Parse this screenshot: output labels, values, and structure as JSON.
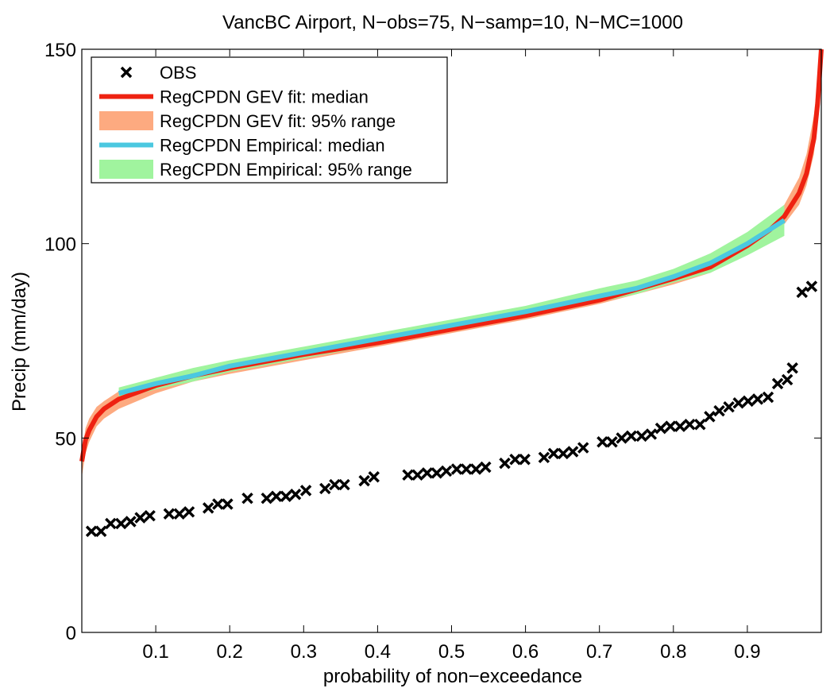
{
  "chart_data": {
    "type": "line",
    "title": "VancBC Airport, N−obs=75, N−samp=10, N−MC=1000",
    "xlabel": "probability of non−exceedance",
    "ylabel": "Precip (mm/day)",
    "xlim": [
      0.0,
      1.0
    ],
    "ylim": [
      0,
      150
    ],
    "xticks": [
      0.1,
      0.2,
      0.3,
      0.4,
      0.5,
      0.6,
      0.7,
      0.8,
      0.9
    ],
    "xtick_labels": [
      "0.1",
      "0.2",
      "0.3",
      "0.4",
      "0.5",
      "0.6",
      "0.7",
      "0.8",
      "0.9"
    ],
    "yticks": [
      0,
      50,
      100,
      150
    ],
    "ytick_labels": [
      "0",
      "50",
      "100",
      "150"
    ],
    "grid": false,
    "legend_position": "top-left",
    "legend": [
      {
        "label": "OBS",
        "kind": "marker",
        "color": "#000000"
      },
      {
        "label": "RegCPDN GEV fit: median",
        "kind": "line",
        "color": "#ee2211"
      },
      {
        "label": "RegCPDN GEV fit: 95% range",
        "kind": "band",
        "color": "#fdaa80"
      },
      {
        "label": "RegCPDN Empirical: median",
        "kind": "line",
        "color": "#4bc8e0"
      },
      {
        "label": "RegCPDN Empirical: 95% range",
        "kind": "band",
        "color": "#a0f49e"
      }
    ],
    "series": [
      {
        "name": "RegCPDN GEV fit: 95% range",
        "kind": "band",
        "color": "#fdaa80",
        "x": [
          0.0,
          0.005,
          0.01,
          0.02,
          0.03,
          0.05,
          0.1,
          0.15,
          0.2,
          0.3,
          0.4,
          0.5,
          0.6,
          0.7,
          0.8,
          0.85,
          0.9,
          0.93,
          0.95,
          0.97,
          0.98,
          0.99,
          0.995,
          1.0
        ],
        "lower": [
          40,
          46,
          49,
          53,
          55,
          57.5,
          61.5,
          64.5,
          66.5,
          70,
          73.5,
          77,
          80.5,
          84.5,
          89.5,
          92.5,
          97.5,
          101.5,
          105,
          110,
          115,
          123,
          132,
          145
        ],
        "upper": [
          46,
          52.5,
          55,
          58,
          59.5,
          62,
          65.5,
          67.5,
          69.5,
          72.5,
          76,
          79.5,
          83,
          87,
          92.5,
          96,
          102,
          106.5,
          110,
          117,
          123,
          133,
          142,
          150
        ]
      },
      {
        "name": "RegCPDN Empirical: 95% range",
        "kind": "band",
        "color": "#a0f49e",
        "x": [
          0.05,
          0.1,
          0.15,
          0.2,
          0.3,
          0.4,
          0.5,
          0.6,
          0.7,
          0.75,
          0.8,
          0.85,
          0.9,
          0.95
        ],
        "lower": [
          60,
          62.5,
          64.5,
          67,
          70.5,
          74,
          77.5,
          81,
          85,
          87,
          90,
          92.5,
          97,
          102
        ],
        "upper": [
          63,
          65.5,
          68,
          70,
          73.5,
          77,
          80.5,
          84,
          88.5,
          90.5,
          93.5,
          97.5,
          103,
          110
        ]
      },
      {
        "name": "RegCPDN GEV fit: median",
        "kind": "line",
        "color": "#ee2211",
        "x": [
          0.0,
          0.005,
          0.01,
          0.02,
          0.03,
          0.05,
          0.1,
          0.15,
          0.2,
          0.3,
          0.4,
          0.5,
          0.6,
          0.7,
          0.8,
          0.85,
          0.9,
          0.93,
          0.95,
          0.97,
          0.98,
          0.99,
          0.995,
          1.0
        ],
        "y": [
          44,
          49.5,
          52,
          55.5,
          57.5,
          60,
          63.5,
          66,
          68,
          71.5,
          74.5,
          78,
          81.5,
          85.5,
          91,
          94,
          99.5,
          103.5,
          107,
          113,
          118,
          127,
          136,
          150
        ]
      },
      {
        "name": "RegCPDN Empirical: median",
        "kind": "line",
        "color": "#4bc8e0",
        "x": [
          0.05,
          0.1,
          0.15,
          0.2,
          0.3,
          0.4,
          0.5,
          0.6,
          0.7,
          0.75,
          0.8,
          0.85,
          0.9,
          0.95
        ],
        "y": [
          61.5,
          64,
          66,
          68.5,
          72,
          75.5,
          79,
          82.5,
          86.5,
          88.5,
          91.5,
          95,
          100,
          106
        ]
      },
      {
        "name": "OBS",
        "kind": "scatter",
        "color": "#000000",
        "x": [
          0.013,
          0.026,
          0.039,
          0.053,
          0.066,
          0.079,
          0.092,
          0.118,
          0.132,
          0.145,
          0.171,
          0.184,
          0.197,
          0.224,
          0.25,
          0.263,
          0.276,
          0.289,
          0.303,
          0.329,
          0.342,
          0.355,
          0.382,
          0.395,
          0.441,
          0.454,
          0.467,
          0.48,
          0.493,
          0.507,
          0.52,
          0.533,
          0.546,
          0.572,
          0.586,
          0.599,
          0.625,
          0.638,
          0.651,
          0.664,
          0.678,
          0.704,
          0.717,
          0.73,
          0.743,
          0.757,
          0.77,
          0.783,
          0.796,
          0.809,
          0.822,
          0.836,
          0.849,
          0.862,
          0.875,
          0.888,
          0.901,
          0.914,
          0.928,
          0.941,
          0.954,
          0.961,
          0.974,
          0.987
        ],
        "y": [
          26,
          26,
          28,
          28,
          28.5,
          29.5,
          30,
          30.5,
          30.5,
          31,
          32,
          33,
          33,
          34.5,
          34.5,
          35,
          35,
          35.5,
          36.5,
          37,
          38,
          38,
          39,
          40,
          40.5,
          40.5,
          41,
          41,
          41.5,
          42,
          42,
          42,
          42.5,
          43.5,
          44.5,
          44.5,
          45,
          46,
          46,
          46.5,
          47.5,
          49,
          49,
          50,
          50.5,
          50.5,
          51,
          52.5,
          53,
          53,
          53.5,
          53.5,
          55.5,
          57,
          58,
          59,
          59.5,
          60,
          60.5,
          64,
          65,
          68,
          87.5,
          89
        ]
      }
    ]
  }
}
